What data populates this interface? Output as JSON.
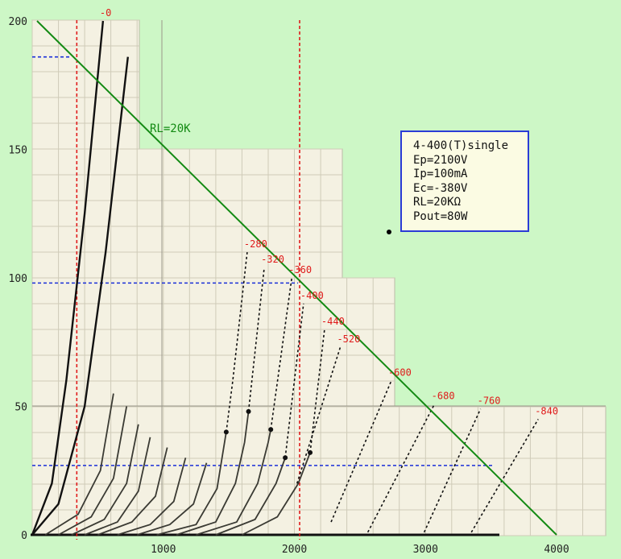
{
  "chart_data": {
    "type": "line",
    "title": "",
    "xlabel": "",
    "ylabel": "",
    "xlim": [
      -150,
      4350
    ],
    "ylim": [
      0,
      200
    ],
    "x_ticks": [
      "1000",
      "2000",
      "3000",
      "4000"
    ],
    "y_ticks": [
      "0",
      "50",
      "100",
      "150",
      "200"
    ],
    "grid": true,
    "load_line": {
      "name": "RL=20K",
      "color": "#138a13",
      "points": [
        [
          0,
          200
        ],
        [
          4000,
          0
        ]
      ]
    },
    "operating_point": {
      "ep": 2100,
      "ip": 98,
      "red_lines_x": [
        340,
        2040
      ],
      "blue_lines_y": [
        186,
        98,
        27
      ]
    },
    "grid_curves": [
      {
        "label": "-0",
        "points": [
          [
            0,
            0
          ],
          [
            150,
            20
          ],
          [
            260,
            60
          ],
          [
            400,
            125
          ],
          [
            540,
            200
          ]
        ]
      },
      {
        "label": "",
        "points": [
          [
            0,
            0
          ],
          [
            200,
            12
          ],
          [
            400,
            50
          ],
          [
            560,
            110
          ],
          [
            730,
            186
          ]
        ]
      },
      {
        "label": "",
        "points": [
          [
            100,
            0
          ],
          [
            350,
            8
          ],
          [
            520,
            25
          ],
          [
            620,
            55
          ]
        ]
      },
      {
        "label": "",
        "points": [
          [
            200,
            0
          ],
          [
            450,
            7
          ],
          [
            620,
            22
          ],
          [
            720,
            50
          ]
        ]
      },
      {
        "label": "",
        "points": [
          [
            300,
            0
          ],
          [
            550,
            6
          ],
          [
            720,
            20
          ],
          [
            810,
            43
          ]
        ]
      },
      {
        "label": "",
        "points": [
          [
            400,
            0
          ],
          [
            650,
            5
          ],
          [
            810,
            17
          ],
          [
            900,
            38
          ]
        ]
      },
      {
        "label": "",
        "points": [
          [
            500,
            0
          ],
          [
            760,
            5
          ],
          [
            940,
            15
          ],
          [
            1030,
            34
          ]
        ]
      },
      {
        "label": "",
        "points": [
          [
            650,
            0
          ],
          [
            900,
            4
          ],
          [
            1080,
            13
          ],
          [
            1170,
            30
          ]
        ]
      },
      {
        "label": "",
        "points": [
          [
            800,
            0
          ],
          [
            1050,
            4
          ],
          [
            1230,
            12
          ],
          [
            1330,
            28
          ]
        ]
      },
      {
        "label": "-280",
        "points": [
          [
            950,
            0
          ],
          [
            1250,
            4
          ],
          [
            1410,
            18
          ],
          [
            1480,
            40
          ],
          [
            1530,
            60
          ],
          [
            1640,
            110
          ]
        ],
        "dashed_from": 3
      },
      {
        "label": "-320",
        "points": [
          [
            1100,
            0
          ],
          [
            1400,
            5
          ],
          [
            1550,
            20
          ],
          [
            1620,
            36
          ],
          [
            1650,
            48
          ],
          [
            1770,
            104
          ]
        ],
        "dashed_from": 4
      },
      {
        "label": "-360",
        "points": [
          [
            1250,
            0
          ],
          [
            1560,
            5
          ],
          [
            1720,
            20
          ],
          [
            1800,
            36
          ],
          [
            1820,
            41
          ],
          [
            1980,
            100
          ]
        ],
        "dashed_from": 4
      },
      {
        "label": "-400",
        "points": [
          [
            1400,
            0
          ],
          [
            1700,
            6
          ],
          [
            1860,
            20
          ],
          [
            1930,
            30
          ],
          [
            2070,
            90
          ]
        ],
        "dashed_from": 3
      },
      {
        "label": "-440",
        "points": [
          [
            1600,
            0
          ],
          [
            1870,
            7
          ],
          [
            2030,
            20
          ],
          [
            2120,
            32
          ],
          [
            2230,
            80
          ]
        ],
        "dashed_from": 3
      },
      {
        "label": "-520",
        "points": [
          [
            2020,
            20
          ],
          [
            2350,
            73
          ]
        ],
        "dashed_from": 0
      },
      {
        "label": "-600",
        "points": [
          [
            2280,
            5
          ],
          [
            2740,
            60
          ]
        ],
        "dashed_from": 0
      },
      {
        "label": "-680",
        "points": [
          [
            2560,
            1
          ],
          [
            3070,
            51
          ]
        ],
        "dashed_from": 0
      },
      {
        "label": "-760",
        "points": [
          [
            2990,
            1
          ],
          [
            3420,
            49
          ]
        ],
        "dashed_from": 0
      },
      {
        "label": "-840",
        "points": [
          [
            3350,
            1
          ],
          [
            3860,
            45
          ]
        ],
        "dashed_from": 0
      }
    ],
    "annotations": [
      {
        "text": "4-400(T)single"
      },
      {
        "text": "Ep=2100V"
      },
      {
        "text": "Ip=100mA"
      },
      {
        "text": "Ec=-380V"
      },
      {
        "text": "RL=20KΩ"
      },
      {
        "text": "Pout=80W"
      }
    ]
  }
}
